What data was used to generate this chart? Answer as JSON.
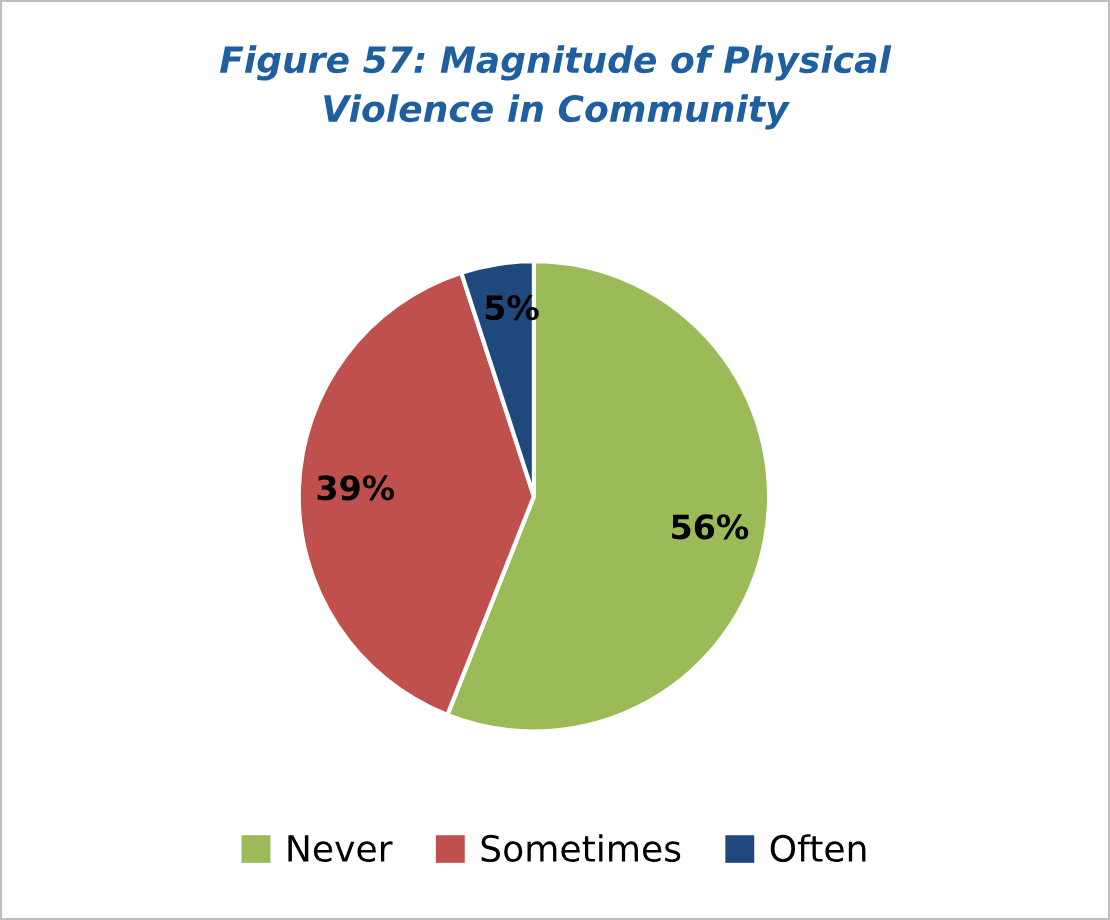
{
  "chart_data": {
    "type": "pie",
    "title": "Figure 57: Magnitude of Physical\nViolence in Community",
    "categories": [
      "Never",
      "Sometimes",
      "Often"
    ],
    "values": [
      56,
      39,
      5
    ],
    "colors": [
      "#9bbb59",
      "#c0504d",
      "#1f497d"
    ],
    "value_labels": [
      "56%",
      "39%",
      "5%"
    ],
    "legend": "bottom"
  }
}
